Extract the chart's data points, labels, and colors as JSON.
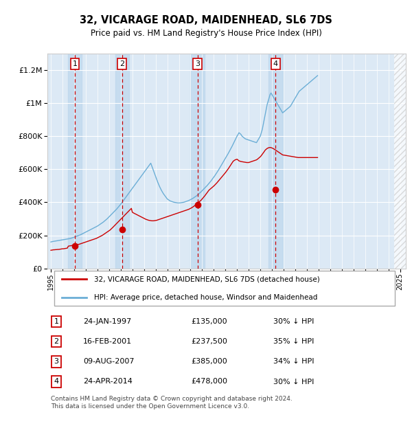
{
  "title": "32, VICARAGE ROAD, MAIDENHEAD, SL6 7DS",
  "subtitle": "Price paid vs. HM Land Registry's House Price Index (HPI)",
  "background_color": "#ffffff",
  "plot_bg_color": "#dce9f5",
  "ylim": [
    0,
    1300000
  ],
  "yticks": [
    0,
    200000,
    400000,
    600000,
    800000,
    1000000,
    1200000
  ],
  "xlim": [
    1994.7,
    2025.5
  ],
  "purchases": [
    {
      "date_num": 1997.07,
      "price": 135000,
      "label": "1"
    },
    {
      "date_num": 2001.12,
      "price": 237500,
      "label": "2"
    },
    {
      "date_num": 2007.6,
      "price": 385000,
      "label": "3"
    },
    {
      "date_num": 2014.31,
      "price": 478000,
      "label": "4"
    }
  ],
  "hpi_color": "#6baed6",
  "price_color": "#cc0000",
  "vline_color": "#cc0000",
  "table_items": [
    {
      "num": "1",
      "date": "24-JAN-1997",
      "price": "£135,000",
      "hpi_text": "30% ↓ HPI"
    },
    {
      "num": "2",
      "date": "16-FEB-2001",
      "price": "£237,500",
      "hpi_text": "35% ↓ HPI"
    },
    {
      "num": "3",
      "date": "09-AUG-2007",
      "price": "£385,000",
      "hpi_text": "34% ↓ HPI"
    },
    {
      "num": "4",
      "date": "24-APR-2014",
      "price": "£478,000",
      "hpi_text": "30% ↓ HPI"
    }
  ],
  "footer": "Contains HM Land Registry data © Crown copyright and database right 2024.\nThis data is licensed under the Open Government Licence v3.0.",
  "xtick_years": [
    1995,
    1996,
    1997,
    1998,
    1999,
    2000,
    2001,
    2002,
    2003,
    2004,
    2005,
    2006,
    2007,
    2008,
    2009,
    2010,
    2011,
    2012,
    2013,
    2014,
    2015,
    2016,
    2017,
    2018,
    2019,
    2020,
    2021,
    2022,
    2023,
    2024,
    2025
  ],
  "hpi_start_year": 1995.0,
  "hpi_step": 0.08333,
  "hpi_monthly": [
    160000,
    162000,
    163000,
    164000,
    165000,
    166000,
    167000,
    168000,
    169000,
    170000,
    171000,
    172000,
    173000,
    174000,
    175000,
    176000,
    177000,
    178000,
    179000,
    180000,
    181000,
    183000,
    185000,
    187000,
    189000,
    191000,
    193000,
    196000,
    198000,
    200000,
    202000,
    205000,
    208000,
    211000,
    214000,
    217000,
    220000,
    223000,
    226000,
    229000,
    232000,
    235000,
    238000,
    241000,
    244000,
    247000,
    250000,
    253000,
    256000,
    260000,
    264000,
    268000,
    272000,
    276000,
    280000,
    285000,
    290000,
    295000,
    300000,
    306000,
    312000,
    318000,
    324000,
    330000,
    336000,
    342000,
    348000,
    354000,
    360000,
    367000,
    374000,
    381000,
    388000,
    396000,
    404000,
    412000,
    420000,
    428000,
    436000,
    444000,
    452000,
    460000,
    468000,
    476000,
    484000,
    492000,
    500000,
    508000,
    516000,
    524000,
    532000,
    540000,
    548000,
    556000,
    564000,
    572000,
    580000,
    588000,
    596000,
    604000,
    612000,
    620000,
    628000,
    636000,
    620000,
    604000,
    588000,
    572000,
    556000,
    540000,
    524000,
    510000,
    496000,
    484000,
    472000,
    462000,
    452000,
    444000,
    436000,
    428000,
    420000,
    416000,
    412000,
    408000,
    406000,
    404000,
    402000,
    400000,
    399000,
    398000,
    397000,
    396000,
    396000,
    396000,
    397000,
    398000,
    399000,
    400000,
    402000,
    404000,
    406000,
    408000,
    410000,
    413000,
    416000,
    419000,
    422000,
    426000,
    430000,
    434000,
    438000,
    443000,
    448000,
    453000,
    458000,
    464000,
    470000,
    476000,
    482000,
    488000,
    494000,
    500000,
    507000,
    514000,
    521000,
    528000,
    536000,
    544000,
    552000,
    560000,
    569000,
    578000,
    587000,
    596000,
    606000,
    616000,
    626000,
    636000,
    646000,
    656000,
    666000,
    676000,
    686000,
    696000,
    707000,
    718000,
    729000,
    740000,
    752000,
    764000,
    776000,
    788000,
    800000,
    810000,
    820000,
    815000,
    810000,
    800000,
    795000,
    790000,
    785000,
    782000,
    780000,
    778000,
    776000,
    774000,
    772000,
    770000,
    768000,
    766000,
    764000,
    762000,
    760000,
    770000,
    780000,
    790000,
    800000,
    820000,
    840000,
    870000,
    900000,
    930000,
    960000,
    990000,
    1010000,
    1030000,
    1050000,
    1060000,
    1050000,
    1040000,
    1030000,
    1020000,
    1010000,
    1000000,
    990000,
    980000,
    970000,
    960000,
    950000,
    940000,
    945000,
    950000,
    955000,
    960000,
    965000,
    970000,
    975000,
    980000,
    990000,
    1000000,
    1010000,
    1020000,
    1030000,
    1040000,
    1050000,
    1060000,
    1070000,
    1075000,
    1080000,
    1085000,
    1090000,
    1095000,
    1100000,
    1105000,
    1110000,
    1115000,
    1120000,
    1125000,
    1130000,
    1135000,
    1140000,
    1145000,
    1150000,
    1155000,
    1160000,
    1165000
  ],
  "price_monthly": [
    110000,
    111000,
    112000,
    113000,
    113000,
    114000,
    114000,
    115000,
    115000,
    116000,
    117000,
    118000,
    119000,
    119000,
    120000,
    121000,
    122000,
    123000,
    135000,
    136000,
    137000,
    138000,
    139000,
    140000,
    141000,
    142000,
    143000,
    144000,
    145000,
    146000,
    148000,
    150000,
    152000,
    154000,
    156000,
    158000,
    160000,
    162000,
    164000,
    166000,
    168000,
    170000,
    172000,
    174000,
    176000,
    178000,
    180000,
    182000,
    185000,
    188000,
    191000,
    194000,
    197000,
    200000,
    204000,
    208000,
    212000,
    216000,
    220000,
    224000,
    228000,
    232000,
    237500,
    243000,
    249000,
    255000,
    261000,
    267000,
    273000,
    279000,
    285000,
    291000,
    297000,
    303000,
    309000,
    315000,
    321000,
    327000,
    333000,
    339000,
    345000,
    351000,
    357000,
    363000,
    340000,
    336000,
    333000,
    330000,
    327000,
    324000,
    321000,
    318000,
    315000,
    312000,
    309000,
    306000,
    303000,
    300000,
    297000,
    295000,
    293000,
    291000,
    290000,
    289000,
    288000,
    288000,
    288000,
    289000,
    290000,
    291000,
    293000,
    295000,
    297000,
    299000,
    301000,
    303000,
    305000,
    307000,
    309000,
    311000,
    313000,
    315000,
    317000,
    319000,
    321000,
    323000,
    325000,
    327000,
    329000,
    331000,
    333000,
    335000,
    337000,
    339000,
    341000,
    343000,
    345000,
    347000,
    349000,
    351000,
    353000,
    355000,
    357000,
    360000,
    363000,
    366000,
    370000,
    374000,
    378000,
    383000,
    388000,
    393000,
    398000,
    403000,
    408000,
    413000,
    420000,
    427000,
    434000,
    441000,
    449000,
    457000,
    465000,
    473000,
    478000,
    483000,
    488000,
    493000,
    498000,
    504000,
    510000,
    516000,
    523000,
    530000,
    537000,
    544000,
    551000,
    558000,
    565000,
    572000,
    579000,
    587000,
    595000,
    603000,
    612000,
    621000,
    630000,
    639000,
    648000,
    652000,
    656000,
    658000,
    660000,
    655000,
    650000,
    648000,
    646000,
    645000,
    644000,
    643000,
    642000,
    641000,
    640000,
    640000,
    640000,
    642000,
    644000,
    646000,
    648000,
    650000,
    652000,
    654000,
    656000,
    660000,
    665000,
    670000,
    675000,
    682000,
    690000,
    698000,
    706000,
    715000,
    720000,
    725000,
    728000,
    730000,
    731000,
    730000,
    728000,
    725000,
    722000,
    718000,
    714000,
    710000,
    706000,
    702000,
    698000,
    694000,
    690000,
    686000,
    685000,
    684000,
    683000,
    682000,
    681000,
    680000,
    679000,
    678000,
    677000,
    676000,
    675000,
    674000,
    673000,
    672000,
    671000,
    670000,
    670000,
    670000,
    670000,
    670000,
    670000,
    670000,
    670000,
    670000,
    670000,
    670000,
    670000,
    670000,
    670000,
    670000,
    670000,
    670000,
    670000,
    670000,
    670000,
    670000
  ]
}
